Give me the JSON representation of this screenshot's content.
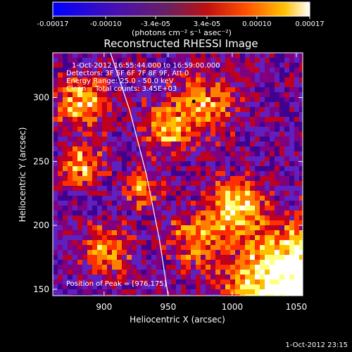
{
  "colorbar": {
    "ticks": [
      "-0.00017",
      "-0.00010",
      "-3.4e-05",
      "3.4e-05",
      "0.00010",
      "0.00017"
    ],
    "tick_values": [
      -0.00017,
      -0.0001,
      -3.4e-05,
      3.4e-05,
      0.0001,
      0.00017
    ],
    "range": [
      -0.00017,
      0.00017
    ],
    "unit_label": "(photons cm⁻² s⁻¹ asec⁻²)"
  },
  "chart_data": {
    "type": "heatmap",
    "title": "Reconstructed RHESSI Image",
    "xlabel": "Heliocentric X (arcsec)",
    "ylabel": "Heliocentric Y (arcsec)",
    "xlim": [
      860,
      1055
    ],
    "ylim": [
      145,
      335
    ],
    "x_ticks": [
      "900",
      "950",
      "1000",
      "1050"
    ],
    "x_tick_values": [
      900,
      950,
      1000,
      1050
    ],
    "y_ticks": [
      "150",
      "200",
      "250",
      "300"
    ],
    "y_tick_values": [
      150,
      200,
      250,
      300
    ],
    "annotations": [
      "1-Oct-2012 16:55:44.000 to 16:59:00.000",
      "Detectors: 3F 5F 6F 7F 8F 9F, Att 0",
      "Energy Range: 25.0 - 50.0 keV",
      "Clean    Total counts: 3.45E+03"
    ],
    "peak_label": "Position of Peak = [976,175]",
    "peak_position": [
      976,
      175
    ],
    "limb_curve": [
      [
        905,
        335
      ],
      [
        920,
        290
      ],
      [
        933,
        240
      ],
      [
        943,
        190
      ],
      [
        950,
        145
      ]
    ],
    "grid": false
  },
  "timestamp": "1-Oct-2012 23:15",
  "colors": {
    "colormap": [
      "#0000ff",
      "#400090",
      "#6020c0",
      "#800080",
      "#c00020",
      "#ff3000",
      "#ff8000",
      "#ffc000",
      "#ffff80",
      "#ffffff"
    ]
  }
}
